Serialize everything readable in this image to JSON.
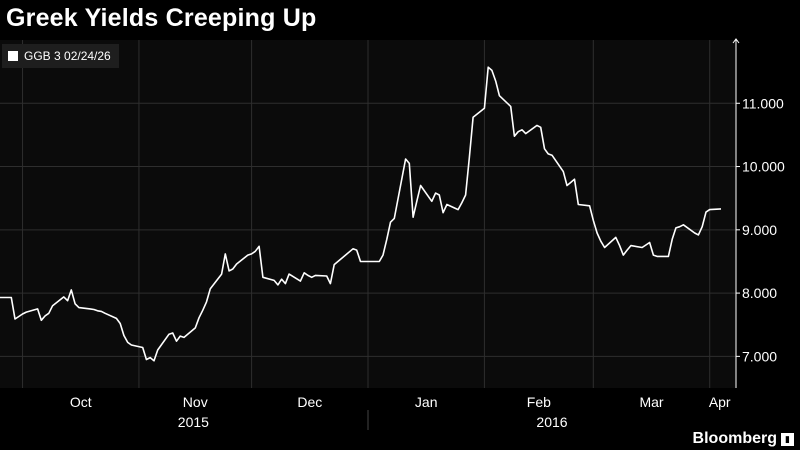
{
  "colors": {
    "background": "#000000",
    "plot_background": "#0b0b0b",
    "series": "#ffffff",
    "grid": "#2e2e2e"
  },
  "logo": {
    "text": "Bloomberg",
    "icon": "bloomberg-chart-icon"
  },
  "chart_data": {
    "type": "line",
    "title": "Greek Yields Creeping Up",
    "legend": {
      "position": "top-left",
      "entries": [
        "GGB 3 02/24/26"
      ]
    },
    "grid": true,
    "xlim": [
      "2015-09-25",
      "2016-04-08"
    ],
    "ylim": [
      6.5,
      12.0
    ],
    "y_axis_side": "right",
    "yticks": [
      7.0,
      8.0,
      9.0,
      10.0,
      11.0
    ],
    "ytick_labels": [
      "7.000",
      "8.000",
      "9.000",
      "10.000",
      "11.000"
    ],
    "month_ticks": [
      {
        "date": "2015-10-01",
        "label": "Oct"
      },
      {
        "date": "2015-11-01",
        "label": "Nov"
      },
      {
        "date": "2015-12-01",
        "label": "Dec"
      },
      {
        "date": "2016-01-01",
        "label": "Jan"
      },
      {
        "date": "2016-02-01",
        "label": "Feb"
      },
      {
        "date": "2016-03-01",
        "label": "Mar"
      },
      {
        "date": "2016-04-01",
        "label": "Apr"
      }
    ],
    "year_labels": [
      {
        "label": "2015",
        "from": "2015-10-01",
        "to": "2015-12-31"
      },
      {
        "label": "2016",
        "from": "2016-01-01",
        "to": "2016-04-08"
      }
    ],
    "series": [
      {
        "name": "GGB 3 02/24/26",
        "points": [
          [
            "2015-09-25",
            7.93
          ],
          [
            "2015-09-28",
            7.93
          ],
          [
            "2015-09-29",
            7.59
          ],
          [
            "2015-09-30",
            7.63
          ],
          [
            "2015-10-01",
            7.67
          ],
          [
            "2015-10-02",
            7.7
          ],
          [
            "2015-10-05",
            7.75
          ],
          [
            "2015-10-06",
            7.57
          ],
          [
            "2015-10-07",
            7.64
          ],
          [
            "2015-10-08",
            7.68
          ],
          [
            "2015-10-09",
            7.8
          ],
          [
            "2015-10-12",
            7.94
          ],
          [
            "2015-10-13",
            7.88
          ],
          [
            "2015-10-14",
            8.05
          ],
          [
            "2015-10-15",
            7.83
          ],
          [
            "2015-10-16",
            7.77
          ],
          [
            "2015-10-19",
            7.75
          ],
          [
            "2015-10-20",
            7.74
          ],
          [
            "2015-10-21",
            7.72
          ],
          [
            "2015-10-22",
            7.71
          ],
          [
            "2015-10-23",
            7.68
          ],
          [
            "2015-10-26",
            7.6
          ],
          [
            "2015-10-27",
            7.52
          ],
          [
            "2015-10-28",
            7.33
          ],
          [
            "2015-10-29",
            7.22
          ],
          [
            "2015-10-30",
            7.18
          ],
          [
            "2015-11-02",
            7.14
          ],
          [
            "2015-11-03",
            6.95
          ],
          [
            "2015-11-04",
            6.98
          ],
          [
            "2015-11-05",
            6.93
          ],
          [
            "2015-11-06",
            7.1
          ],
          [
            "2015-11-09",
            7.35
          ],
          [
            "2015-11-10",
            7.37
          ],
          [
            "2015-11-11",
            7.24
          ],
          [
            "2015-11-12",
            7.32
          ],
          [
            "2015-11-13",
            7.3
          ],
          [
            "2015-11-16",
            7.45
          ],
          [
            "2015-11-17",
            7.61
          ],
          [
            "2015-11-18",
            7.73
          ],
          [
            "2015-11-19",
            7.86
          ],
          [
            "2015-11-20",
            8.07
          ],
          [
            "2015-11-23",
            8.3
          ],
          [
            "2015-11-24",
            8.62
          ],
          [
            "2015-11-25",
            8.35
          ],
          [
            "2015-11-26",
            8.38
          ],
          [
            "2015-11-27",
            8.46
          ],
          [
            "2015-11-30",
            8.6
          ],
          [
            "2015-12-01",
            8.62
          ],
          [
            "2015-12-02",
            8.66
          ],
          [
            "2015-12-03",
            8.74
          ],
          [
            "2015-12-04",
            8.25
          ],
          [
            "2015-12-07",
            8.2
          ],
          [
            "2015-12-08",
            8.13
          ],
          [
            "2015-12-09",
            8.22
          ],
          [
            "2015-12-10",
            8.15
          ],
          [
            "2015-12-11",
            8.3
          ],
          [
            "2015-12-14",
            8.19
          ],
          [
            "2015-12-15",
            8.32
          ],
          [
            "2015-12-16",
            8.28
          ],
          [
            "2015-12-17",
            8.25
          ],
          [
            "2015-12-18",
            8.28
          ],
          [
            "2015-12-21",
            8.27
          ],
          [
            "2015-12-22",
            8.15
          ],
          [
            "2015-12-23",
            8.45
          ],
          [
            "2015-12-28",
            8.7
          ],
          [
            "2015-12-29",
            8.68
          ],
          [
            "2015-12-30",
            8.5
          ],
          [
            "2015-12-31",
            8.5
          ],
          [
            "2016-01-04",
            8.5
          ],
          [
            "2016-01-05",
            8.6
          ],
          [
            "2016-01-06",
            8.85
          ],
          [
            "2016-01-07",
            9.12
          ],
          [
            "2016-01-08",
            9.18
          ],
          [
            "2016-01-11",
            10.12
          ],
          [
            "2016-01-12",
            10.05
          ],
          [
            "2016-01-13",
            9.2
          ],
          [
            "2016-01-14",
            9.45
          ],
          [
            "2016-01-15",
            9.7
          ],
          [
            "2016-01-18",
            9.45
          ],
          [
            "2016-01-19",
            9.58
          ],
          [
            "2016-01-20",
            9.55
          ],
          [
            "2016-01-21",
            9.27
          ],
          [
            "2016-01-22",
            9.4
          ],
          [
            "2016-01-25",
            9.32
          ],
          [
            "2016-01-26",
            9.43
          ],
          [
            "2016-01-27",
            9.55
          ],
          [
            "2016-01-28",
            10.15
          ],
          [
            "2016-01-29",
            10.78
          ],
          [
            "2016-02-01",
            10.92
          ],
          [
            "2016-02-02",
            11.57
          ],
          [
            "2016-02-03",
            11.52
          ],
          [
            "2016-02-04",
            11.35
          ],
          [
            "2016-02-05",
            11.12
          ],
          [
            "2016-02-08",
            10.95
          ],
          [
            "2016-02-09",
            10.48
          ],
          [
            "2016-02-10",
            10.55
          ],
          [
            "2016-02-11",
            10.58
          ],
          [
            "2016-02-12",
            10.52
          ],
          [
            "2016-02-15",
            10.65
          ],
          [
            "2016-02-16",
            10.62
          ],
          [
            "2016-02-17",
            10.28
          ],
          [
            "2016-02-18",
            10.2
          ],
          [
            "2016-02-19",
            10.18
          ],
          [
            "2016-02-22",
            9.92
          ],
          [
            "2016-02-23",
            9.7
          ],
          [
            "2016-02-24",
            9.75
          ],
          [
            "2016-02-25",
            9.8
          ],
          [
            "2016-02-26",
            9.4
          ],
          [
            "2016-02-29",
            9.38
          ],
          [
            "2016-03-01",
            9.15
          ],
          [
            "2016-03-02",
            8.95
          ],
          [
            "2016-03-03",
            8.82
          ],
          [
            "2016-03-04",
            8.72
          ],
          [
            "2016-03-07",
            8.88
          ],
          [
            "2016-03-08",
            8.75
          ],
          [
            "2016-03-09",
            8.6
          ],
          [
            "2016-03-10",
            8.68
          ],
          [
            "2016-03-11",
            8.75
          ],
          [
            "2016-03-14",
            8.72
          ],
          [
            "2016-03-15",
            8.76
          ],
          [
            "2016-03-16",
            8.8
          ],
          [
            "2016-03-17",
            8.6
          ],
          [
            "2016-03-18",
            8.58
          ],
          [
            "2016-03-21",
            8.58
          ],
          [
            "2016-03-22",
            8.85
          ],
          [
            "2016-03-23",
            9.03
          ],
          [
            "2016-03-24",
            9.05
          ],
          [
            "2016-03-25",
            9.08
          ],
          [
            "2016-03-28",
            8.95
          ],
          [
            "2016-03-29",
            8.92
          ],
          [
            "2016-03-30",
            9.05
          ],
          [
            "2016-03-31",
            9.28
          ],
          [
            "2016-04-01",
            9.32
          ],
          [
            "2016-04-04",
            9.33
          ]
        ]
      }
    ]
  }
}
